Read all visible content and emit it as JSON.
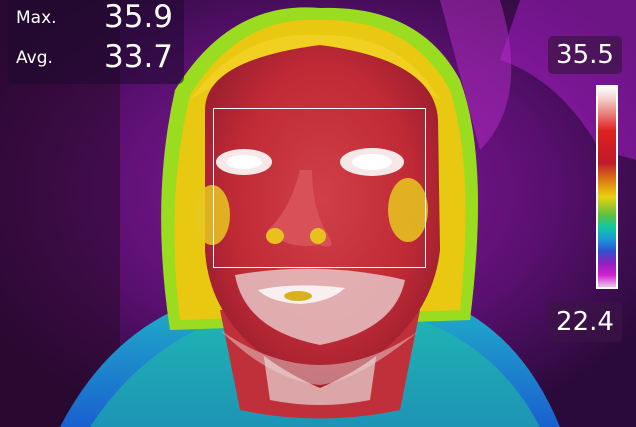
{
  "stats": {
    "max_label": "Max.",
    "max_value": "35.9",
    "avg_label": "Avg.",
    "avg_value": "33.7"
  },
  "scale": {
    "top_value": "35.5",
    "bottom_value": "22.4"
  },
  "colors": {
    "background": "#2a0a3a",
    "hot": "#c8303a",
    "warm": "#e8d010",
    "cool": "#1a9ad8",
    "cold": "#a020c0"
  }
}
